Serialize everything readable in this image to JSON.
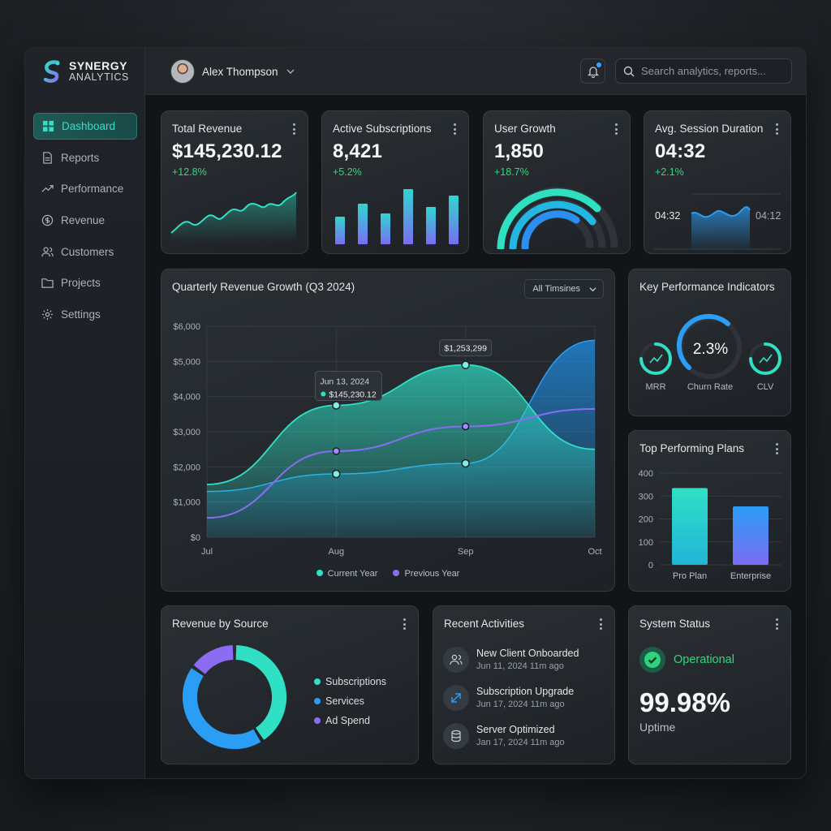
{
  "brand": {
    "line1": "SYNERGY",
    "line2": "ANALYTICS"
  },
  "nav": [
    {
      "label": "Dashboard",
      "icon": "dashboard-icon",
      "active": true
    },
    {
      "label": "Reports",
      "icon": "document-icon"
    },
    {
      "label": "Performance",
      "icon": "trend-icon"
    },
    {
      "label": "Revenue",
      "icon": "dollar-icon"
    },
    {
      "label": "Customers",
      "icon": "users-icon"
    },
    {
      "label": "Projects",
      "icon": "folder-icon"
    },
    {
      "label": "Settings",
      "icon": "gear-icon"
    }
  ],
  "topbar": {
    "user_name": "Alex Thompson",
    "search_placeholder": "Search analytics, reports..."
  },
  "stats": {
    "revenue": {
      "title": "Total Revenue",
      "value": "$145,230.12",
      "change": "+12.8%"
    },
    "subs": {
      "title": "Active Subscriptions",
      "value": "8,421",
      "change": "+5.2%"
    },
    "growth": {
      "title": "User Growth",
      "value": "1,850",
      "change": "+18.7%"
    },
    "session": {
      "title": "Avg. Session Duration",
      "value": "04:32",
      "change": "+2.1%",
      "left_label": "04:32",
      "right_label": "04:12"
    }
  },
  "quarterly": {
    "title": "Quarterly Revenue Growth (Q3 2024)",
    "filter": "All Timsines",
    "tooltip1_date": "Jun 13, 2024",
    "tooltip1_value": "$145,230.12",
    "tooltip2_value": "$1,253,299"
  },
  "kpi": {
    "title": "Key Performance Indicators",
    "churn_value": "2.3%",
    "labels": {
      "mrr": "MRR",
      "churn": "Churn Rate",
      "clv": "CLV"
    }
  },
  "plans": {
    "title": "Top Performing Plans"
  },
  "source": {
    "title": "Revenue by Source",
    "legend": [
      "Subscriptions",
      "Services",
      "Ad Spend"
    ]
  },
  "activities": {
    "title": "Recent Activities",
    "items": [
      {
        "title": "New Client Onboarded",
        "time": "Jun 11, 2024 11m ago"
      },
      {
        "title": "Subscription Upgrade",
        "time": "Jun 17, 2024 11m ago"
      },
      {
        "title": "Server Optimized",
        "time": "Jan 17, 2024 11m ago"
      }
    ]
  },
  "status": {
    "title": "System Status",
    "state": "Operational",
    "uptime_value": "99.98%",
    "uptime_label": "Uptime"
  },
  "colors": {
    "accent": "#2fe0c5",
    "blue": "#2a9df4",
    "purple": "#8a6cf2",
    "green": "#34d67f"
  },
  "chart_data": [
    {
      "type": "area",
      "title": "Quarterly Revenue Growth (Q3 2024)",
      "categories": [
        "Jul",
        "Aug",
        "Sep",
        "Oct"
      ],
      "ylim": [
        0,
        6000
      ],
      "yticks": [
        "$0",
        "$1,000",
        "$2,000",
        "$3,000",
        "$4,000",
        "$5,000",
        "$6,000"
      ],
      "series": [
        {
          "name": "Current Year",
          "values": [
            1500,
            3750,
            4900,
            2500
          ]
        },
        {
          "values": [
            1300,
            1800,
            2100,
            5600
          ]
        },
        {
          "name": "Previous Year",
          "values": [
            550,
            2450,
            3150,
            3650
          ]
        }
      ],
      "legend": [
        "Current Year",
        "Previous Year"
      ],
      "grid": true
    },
    {
      "type": "bar",
      "title": "Top Performing Plans",
      "categories": [
        "Pro Plan",
        "Enterprise"
      ],
      "values": [
        335,
        255
      ],
      "ylim": [
        0,
        400
      ],
      "yticks": [
        "0",
        "100",
        "200",
        "300",
        "400"
      ]
    },
    {
      "type": "pie",
      "title": "Revenue by Source",
      "categories": [
        "Subscriptions",
        "Services",
        "Ad Spend"
      ],
      "values": [
        41,
        44,
        15
      ]
    }
  ]
}
